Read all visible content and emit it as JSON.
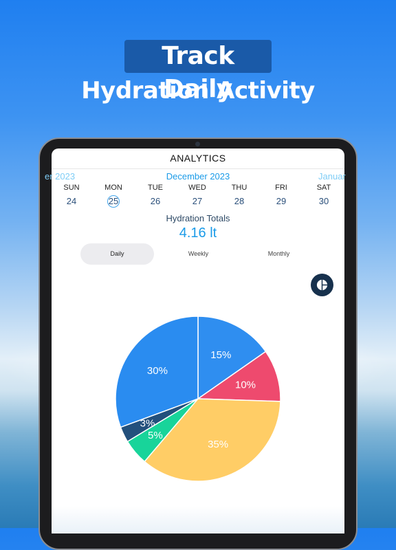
{
  "promo": {
    "line1": "Track Daily",
    "line2": "Hydration Activity"
  },
  "app": {
    "title": "ANALYTICS"
  },
  "calendar": {
    "prev_month": "er 2023",
    "current_month": "December 2023",
    "next_month": "Januar",
    "days": [
      {
        "name": "SUN",
        "num": "24"
      },
      {
        "name": "MON",
        "num": "25"
      },
      {
        "name": "TUE",
        "num": "26"
      },
      {
        "name": "WED",
        "num": "27"
      },
      {
        "name": "THU",
        "num": "28"
      },
      {
        "name": "FRI",
        "num": "29"
      },
      {
        "name": "SAT",
        "num": "30"
      }
    ],
    "selected_index": 1
  },
  "totals": {
    "label": "Hydration Totals",
    "value": "4.16 lt"
  },
  "tabs": [
    {
      "label": "Daily",
      "active": true
    },
    {
      "label": "Weekly",
      "active": false
    },
    {
      "label": "Monthly",
      "active": false
    }
  ],
  "chart_toggle_icon": "pie-chart-icon",
  "chart_data": {
    "type": "pie",
    "slices": [
      {
        "value": 15,
        "label": "15%",
        "color": "#2f8ef0"
      },
      {
        "value": 10,
        "label": "10%",
        "color": "#ee4a6e"
      },
      {
        "value": 35,
        "label": "35%",
        "color": "#ffcd66"
      },
      {
        "value": 5,
        "label": "5%",
        "color": "#18d49a"
      },
      {
        "value": 3,
        "label": "3%",
        "color": "#23507c"
      },
      {
        "value": 30,
        "label": "30%",
        "color": "#2a8cf0"
      }
    ]
  }
}
